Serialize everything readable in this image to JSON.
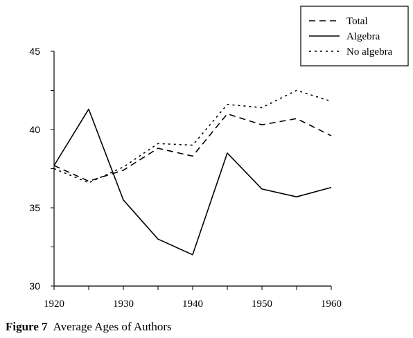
{
  "caption": {
    "label": "Figure 7",
    "text": "Average Ages of Authors"
  },
  "chart_data": {
    "type": "line",
    "title": "",
    "xlabel": "",
    "ylabel": "",
    "xlim": [
      1920,
      1960
    ],
    "ylim": [
      30,
      45
    ],
    "x_ticks": [
      1920,
      1930,
      1940,
      1950,
      1960
    ],
    "y_ticks": [
      30,
      35,
      40,
      45
    ],
    "grid": false,
    "legend_position": "top-right",
    "x": [
      1920,
      1925,
      1930,
      1935,
      1940,
      1945,
      1950,
      1955,
      1960
    ],
    "series": [
      {
        "name": "Total",
        "style": "dashed",
        "values": [
          37.7,
          36.7,
          37.4,
          38.8,
          38.3,
          41.0,
          40.3,
          40.7,
          39.6
        ]
      },
      {
        "name": "Algebra",
        "style": "solid",
        "values": [
          37.7,
          41.3,
          35.5,
          33.0,
          32.0,
          38.5,
          36.2,
          35.7,
          36.3
        ]
      },
      {
        "name": "No algebra",
        "style": "dotted",
        "values": [
          37.5,
          36.6,
          37.6,
          39.1,
          39.0,
          41.6,
          41.4,
          42.5,
          41.8
        ]
      }
    ]
  }
}
